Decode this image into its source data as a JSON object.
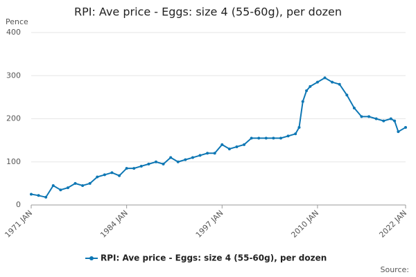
{
  "chart_data": {
    "type": "line",
    "title": "RPI: Ave price - Eggs: size 4 (55-60g), per dozen",
    "y_label": "Pence",
    "source": "Source:",
    "x": [
      "1971 JAN",
      "1972 JAN",
      "1973 JAN",
      "1974 JAN",
      "1975 JAN",
      "1976 JAN",
      "1977 JAN",
      "1978 JAN",
      "1979 JAN",
      "1980 JAN",
      "1981 JAN",
      "1982 JAN",
      "1983 JAN",
      "1984 JAN",
      "1985 JAN",
      "1986 JAN",
      "1987 JAN",
      "1988 JAN",
      "1989 JAN",
      "1990 JAN",
      "1991 JAN",
      "1992 JAN",
      "1993 JAN",
      "1994 JAN",
      "1995 JAN",
      "1996 JAN",
      "1997 JAN",
      "1998 JAN",
      "1999 JAN",
      "2000 JAN",
      "2001 JAN",
      "2002 JAN",
      "2003 JAN",
      "2004 JAN",
      "2005 JAN",
      "2006 JAN",
      "2007 JAN",
      "2007 JUL",
      "2008 JAN",
      "2008 JUL",
      "2009 JAN",
      "2010 JAN",
      "2011 JAN",
      "2012 JAN",
      "2013 JAN",
      "2014 JAN",
      "2015 JAN",
      "2016 JAN",
      "2017 JAN",
      "2018 JAN",
      "2019 JAN",
      "2020 JAN",
      "2020 JUL",
      "2021 JAN",
      "2022 JAN"
    ],
    "series": [
      {
        "name": "RPI: Ave price - Eggs: size 4 (55-60g), per dozen",
        "color": "#0e77b4",
        "values": [
          25,
          22,
          18,
          45,
          35,
          40,
          50,
          45,
          50,
          65,
          70,
          75,
          68,
          85,
          85,
          90,
          95,
          100,
          95,
          110,
          100,
          105,
          110,
          115,
          120,
          120,
          140,
          130,
          135,
          140,
          155,
          155,
          155,
          155,
          155,
          160,
          165,
          180,
          240,
          265,
          275,
          285,
          295,
          285,
          280,
          255,
          225,
          205,
          205,
          200,
          195,
          200,
          195,
          170,
          180
        ]
      }
    ],
    "xlim": [
      "1971 JAN",
      "2022 JAN"
    ],
    "xticks": [
      "1971 JAN",
      "1984 JAN",
      "1997 JAN",
      "2010 JAN",
      "2022 JAN"
    ],
    "ylim": [
      0,
      400
    ],
    "yticks": [
      0,
      100,
      200,
      300,
      400
    ],
    "grid": true
  }
}
